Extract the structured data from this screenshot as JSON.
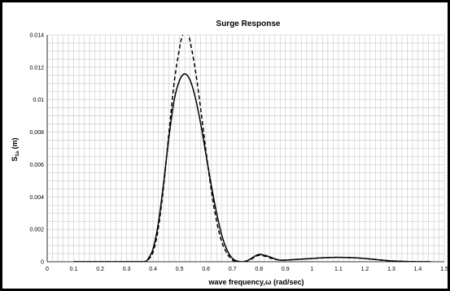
{
  "chart_data": {
    "type": "line",
    "title": "Surge Response",
    "xlabel": "wave frequency,ω  (rad/sec)",
    "ylabel_main": "S",
    "ylabel_sub": "1a",
    "ylabel_unit": "(m)",
    "xlim": [
      0,
      1.5
    ],
    "ylim": [
      0,
      0.014
    ],
    "x_ticks": [
      "0",
      "0.1",
      "0.2",
      "0.3",
      "0.4",
      "0.5",
      "0.6",
      "0.7",
      "0.8",
      "0.9",
      "1",
      "1.1",
      "1.2",
      "1.3",
      "1.4",
      "1.5"
    ],
    "y_ticks": [
      "0",
      "0.002",
      "0.004",
      "0.006",
      "0.008",
      "0.01",
      "0.012",
      "0.014"
    ],
    "grid": true,
    "series": [
      {
        "style": "solid",
        "color": "#000000",
        "x": [
          0.1,
          0.35,
          0.37,
          0.38,
          0.4,
          0.42,
          0.44,
          0.46,
          0.48,
          0.5,
          0.52,
          0.54,
          0.56,
          0.58,
          0.6,
          0.62,
          0.64,
          0.66,
          0.68,
          0.7,
          0.72,
          0.74,
          0.76,
          0.78,
          0.8,
          0.82,
          0.84,
          0.86,
          0.88,
          0.9,
          0.95,
          1.0,
          1.05,
          1.1,
          1.15,
          1.2,
          1.25,
          1.3,
          1.35,
          1.4,
          1.45
        ],
        "y": [
          0.0,
          0.0,
          2e-05,
          0.00015,
          0.0008,
          0.0024,
          0.0049,
          0.0077,
          0.01,
          0.0112,
          0.0116,
          0.0112,
          0.0101,
          0.0085,
          0.0066,
          0.0047,
          0.003,
          0.0016,
          0.0007,
          0.0002,
          3e-05,
          0.0,
          0.0001,
          0.0003,
          0.00045,
          0.0004,
          0.0003,
          0.00018,
          0.0001,
          0.0001,
          0.00015,
          0.0002,
          0.00025,
          0.00027,
          0.00025,
          0.0002,
          0.00012,
          5e-05,
          2e-05,
          0.0,
          0.0
        ]
      },
      {
        "style": "dashed",
        "color": "#000000",
        "x": [
          0.1,
          0.35,
          0.37,
          0.38,
          0.4,
          0.42,
          0.44,
          0.46,
          0.48,
          0.5,
          0.51,
          0.52,
          0.53,
          0.54,
          0.56,
          0.58,
          0.6,
          0.62,
          0.64,
          0.66,
          0.68,
          0.7,
          0.72,
          0.74,
          0.76,
          0.78,
          0.8,
          0.82,
          0.84,
          0.86,
          0.88,
          0.9,
          0.95,
          1.0,
          1.05,
          1.1,
          1.15,
          1.2,
          1.25,
          1.3,
          1.35,
          1.4,
          1.45
        ],
        "y": [
          0.0,
          0.0,
          2e-05,
          0.0001,
          0.0006,
          0.0021,
          0.0047,
          0.008,
          0.0111,
          0.0132,
          0.0139,
          0.0142,
          0.0141,
          0.0136,
          0.0118,
          0.0094,
          0.0068,
          0.0044,
          0.0025,
          0.0012,
          0.0005,
          0.0001,
          2e-05,
          0.0,
          8e-05,
          0.00025,
          0.0004,
          0.00035,
          0.00025,
          0.00015,
          0.0001,
          0.0001,
          0.00015,
          0.0002,
          0.00025,
          0.00027,
          0.00025,
          0.0002,
          0.00012,
          5e-05,
          2e-05,
          0.0,
          0.0
        ]
      }
    ]
  }
}
